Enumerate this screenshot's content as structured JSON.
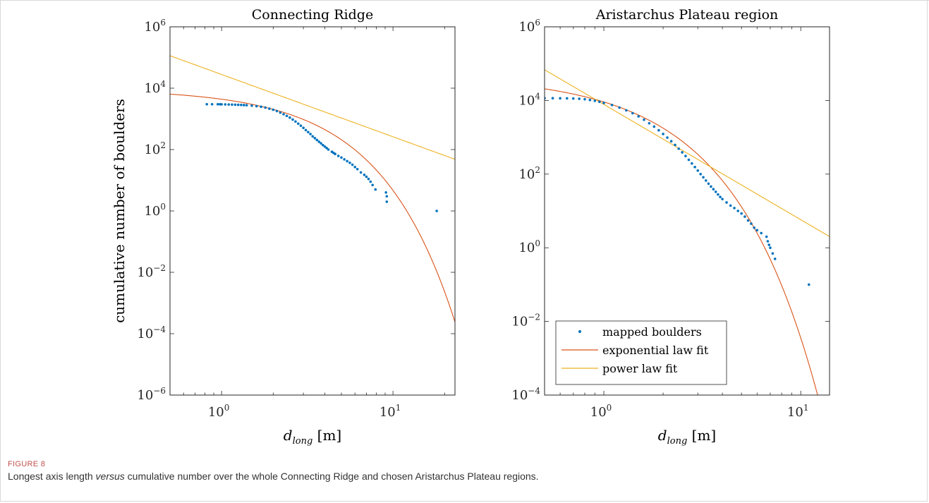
{
  "figure": {
    "label": "FIGURE 8",
    "caption_before": "Longest axis length ",
    "caption_italic": "versus",
    "caption_after": " cumulative number over the whole Connecting Ridge and chosen Aristarchus Plateau regions."
  },
  "colors": {
    "points": "#0072BD",
    "exponential": "#D95319",
    "power": "#EDB120",
    "axis": "#262626"
  },
  "chart_data": [
    {
      "type": "scatter",
      "title": "Connecting Ridge",
      "xlabel_main": "d",
      "xlabel_sub": "long",
      "xlabel_unit": "[m]",
      "ylabel": "cumulative number of boulders",
      "xscale": "log",
      "yscale": "log",
      "xlim": [
        0.5,
        23
      ],
      "ylim": [
        1e-06,
        1000000.0
      ],
      "x_ticks": [
        {
          "value": 1,
          "base": "10",
          "exp": "0"
        },
        {
          "value": 10,
          "base": "10",
          "exp": "1"
        }
      ],
      "y_ticks": [
        {
          "value": 1e-06,
          "base": "10",
          "exp": "−6"
        },
        {
          "value": 0.0001,
          "base": "10",
          "exp": "−4"
        },
        {
          "value": 0.01,
          "base": "10",
          "exp": "−2"
        },
        {
          "value": 1,
          "base": "10",
          "exp": "0"
        },
        {
          "value": 100.0,
          "base": "10",
          "exp": "2"
        },
        {
          "value": 10000.0,
          "base": "10",
          "exp": "4"
        },
        {
          "value": 1000000.0,
          "base": "10",
          "exp": "6"
        }
      ],
      "legend": null,
      "series": [
        {
          "name": "mapped boulders",
          "kind": "points",
          "points": [
            [
              0.82,
              3000
            ],
            [
              0.88,
              3000
            ],
            [
              0.95,
              3000
            ],
            [
              0.98,
              2990
            ],
            [
              1.0,
              2980
            ],
            [
              1.05,
              2960
            ],
            [
              1.1,
              2940
            ],
            [
              1.15,
              2920
            ],
            [
              1.2,
              2900
            ],
            [
              1.25,
              2870
            ],
            [
              1.3,
              2840
            ],
            [
              1.35,
              2810
            ],
            [
              1.4,
              2780
            ],
            [
              1.5,
              2700
            ],
            [
              1.6,
              2600
            ],
            [
              1.7,
              2480
            ],
            [
              1.8,
              2330
            ],
            [
              1.9,
              2150
            ],
            [
              2.0,
              1980
            ],
            [
              2.1,
              1800
            ],
            [
              2.2,
              1600
            ],
            [
              2.3,
              1420
            ],
            [
              2.4,
              1250
            ],
            [
              2.5,
              1100
            ],
            [
              2.6,
              950
            ],
            [
              2.7,
              820
            ],
            [
              2.8,
              700
            ],
            [
              2.9,
              600
            ],
            [
              3.0,
              510
            ],
            [
              3.1,
              430
            ],
            [
              3.2,
              370
            ],
            [
              3.3,
              320
            ],
            [
              3.4,
              270
            ],
            [
              3.5,
              235
            ],
            [
              3.6,
              205
            ],
            [
              3.7,
              180
            ],
            [
              3.8,
              160
            ],
            [
              3.9,
              140
            ],
            [
              4.0,
              125
            ],
            [
              4.1,
              112
            ],
            [
              4.2,
              100
            ],
            [
              4.4,
              85
            ],
            [
              4.5,
              78
            ],
            [
              4.6,
              72
            ],
            [
              4.8,
              62
            ],
            [
              5.0,
              55
            ],
            [
              5.2,
              48
            ],
            [
              5.4,
              42
            ],
            [
              5.6,
              37
            ],
            [
              5.8,
              32
            ],
            [
              6.0,
              27
            ],
            [
              6.2,
              23
            ],
            [
              6.5,
              18
            ],
            [
              6.8,
              15
            ],
            [
              7.0,
              13
            ],
            [
              7.2,
              11
            ],
            [
              7.4,
              9
            ],
            [
              7.6,
              7
            ],
            [
              7.9,
              5
            ],
            [
              9.1,
              4
            ],
            [
              9.2,
              3
            ],
            [
              9.2,
              2
            ],
            [
              18.0,
              1
            ]
          ]
        },
        {
          "name": "exponential law fit",
          "kind": "line",
          "law": "exponential",
          "a": 9350,
          "b": 0.76
        },
        {
          "name": "power law fit",
          "kind": "line",
          "law": "power",
          "c": 28000,
          "k": 2.03
        }
      ]
    },
    {
      "type": "scatter",
      "title": "Aristarchus Plateau region",
      "xlabel_main": "d",
      "xlabel_sub": "long",
      "xlabel_unit": "[m]",
      "ylabel": "",
      "xscale": "log",
      "yscale": "log",
      "xlim": [
        0.5,
        14
      ],
      "ylim": [
        0.0001,
        1000000.0
      ],
      "x_ticks": [
        {
          "value": 1,
          "base": "10",
          "exp": "0"
        },
        {
          "value": 10,
          "base": "10",
          "exp": "1"
        }
      ],
      "y_ticks": [
        {
          "value": 0.0001,
          "base": "10",
          "exp": "−4"
        },
        {
          "value": 0.01,
          "base": "10",
          "exp": "−2"
        },
        {
          "value": 1,
          "base": "10",
          "exp": "0"
        },
        {
          "value": 100.0,
          "base": "10",
          "exp": "2"
        },
        {
          "value": 10000.0,
          "base": "10",
          "exp": "4"
        },
        {
          "value": 1000000.0,
          "base": "10",
          "exp": "6"
        }
      ],
      "legend": {
        "position": "bottom-left",
        "entries": [
          "mapped boulders",
          "exponential law fit",
          "power law fit"
        ]
      },
      "series": [
        {
          "name": "mapped boulders",
          "kind": "points",
          "points": [
            [
              0.5,
              11500
            ],
            [
              0.55,
              11500
            ],
            [
              0.6,
              11450
            ],
            [
              0.65,
              11400
            ],
            [
              0.7,
              11300
            ],
            [
              0.75,
              11100
            ],
            [
              0.8,
              10800
            ],
            [
              0.85,
              10300
            ],
            [
              0.9,
              9800
            ],
            [
              0.95,
              9200
            ],
            [
              1.0,
              8600
            ],
            [
              1.1,
              7500
            ],
            [
              1.2,
              6400
            ],
            [
              1.3,
              5400
            ],
            [
              1.4,
              4500
            ],
            [
              1.5,
              3700
            ],
            [
              1.6,
              3000
            ],
            [
              1.7,
              2400
            ],
            [
              1.8,
              1950
            ],
            [
              1.9,
              1550
            ],
            [
              2.0,
              1230
            ],
            [
              2.1,
              980
            ],
            [
              2.2,
              780
            ],
            [
              2.3,
              620
            ],
            [
              2.4,
              490
            ],
            [
              2.5,
              390
            ],
            [
              2.6,
              310
            ],
            [
              2.7,
              245
            ],
            [
              2.8,
              195
            ],
            [
              2.9,
              155
            ],
            [
              3.0,
              125
            ],
            [
              3.1,
              100
            ],
            [
              3.2,
              82
            ],
            [
              3.3,
              67
            ],
            [
              3.4,
              55
            ],
            [
              3.5,
              46
            ],
            [
              3.6,
              39
            ],
            [
              3.7,
              33
            ],
            [
              3.8,
              28
            ],
            [
              3.9,
              24
            ],
            [
              4.0,
              21
            ],
            [
              4.2,
              17
            ],
            [
              4.4,
              14
            ],
            [
              4.6,
              12
            ],
            [
              4.8,
              10
            ],
            [
              5.0,
              8.5
            ],
            [
              5.2,
              7
            ],
            [
              5.4,
              5.5
            ],
            [
              5.6,
              4.5
            ],
            [
              5.8,
              3.5
            ],
            [
              6.0,
              3
            ],
            [
              6.3,
              2.5
            ],
            [
              6.7,
              2.0
            ],
            [
              6.8,
              1.5
            ],
            [
              6.9,
              1.2
            ],
            [
              7.0,
              1
            ],
            [
              7.2,
              0.7
            ],
            [
              7.4,
              0.5
            ],
            [
              11.0,
              0.1
            ]
          ]
        },
        {
          "name": "exponential law fit",
          "kind": "line",
          "law": "exponential",
          "a": 47000,
          "b": 1.64
        },
        {
          "name": "power law fit",
          "kind": "line",
          "law": "power",
          "c": 7800,
          "k": 3.13
        }
      ]
    }
  ]
}
